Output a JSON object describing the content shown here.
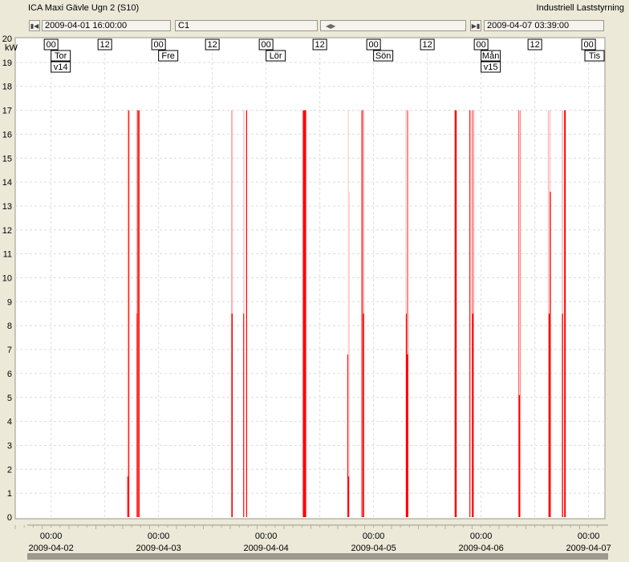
{
  "window": {
    "title": "ICA Maxi Gävle Ugn 2 (S10)",
    "right_title": "Industriell Laststyrning"
  },
  "navigation": {
    "start_time": "2009-04-01 16:00:00",
    "channel": "C1",
    "end_time": "2009-04-07 03:39:00",
    "first_icon": "skip-first-icon",
    "scroll_icon": "left-right-arrows-icon",
    "last_icon": "skip-last-icon"
  },
  "chart_data": {
    "type": "line",
    "ylabel": "kW",
    "ylim": [
      0,
      20
    ],
    "yticks": [
      0,
      1,
      2,
      3,
      4,
      5,
      6,
      7,
      8,
      9,
      10,
      11,
      12,
      13,
      14,
      15,
      16,
      17,
      18,
      19,
      20
    ],
    "x_start_hours_label": "2009-04-01 16:00",
    "xlim_hours": [
      0,
      131.65
    ],
    "x_ticks": [
      {
        "h": 8,
        "time": "00:00",
        "date": "2009-04-02"
      },
      {
        "h": 32,
        "time": "00:00",
        "date": "2009-04-03"
      },
      {
        "h": 56,
        "time": "00:00",
        "date": "2009-04-04"
      },
      {
        "h": 80,
        "time": "00:00",
        "date": "2009-04-05"
      },
      {
        "h": 104,
        "time": "00:00",
        "date": "2009-04-06"
      },
      {
        "h": 128,
        "time": "00:00",
        "date": "2009-04-07"
      }
    ],
    "top_markers": [
      {
        "h": 8,
        "lines": [
          "00",
          "Tor",
          "v14"
        ]
      },
      {
        "h": 20,
        "lines": [
          "12"
        ]
      },
      {
        "h": 32,
        "lines": [
          "00",
          "Fre"
        ]
      },
      {
        "h": 44,
        "lines": [
          "12"
        ]
      },
      {
        "h": 56,
        "lines": [
          "00",
          "Lör"
        ]
      },
      {
        "h": 68,
        "lines": [
          "12"
        ]
      },
      {
        "h": 80,
        "lines": [
          "00",
          "Sön"
        ]
      },
      {
        "h": 92,
        "lines": [
          "12"
        ]
      },
      {
        "h": 104,
        "lines": [
          "00",
          "Mån",
          "v15"
        ]
      },
      {
        "h": 116,
        "lines": [
          "12"
        ]
      },
      {
        "h": 128,
        "lines": [
          "00",
          "Tis"
        ]
      }
    ],
    "grid": true,
    "color": "#ff0000",
    "spikes": [
      {
        "h0": 25.0,
        "h1": 25.15,
        "v": 17,
        "partial": 1.7
      },
      {
        "h0": 25.25,
        "h1": 25.35,
        "v": 17
      },
      {
        "h0": 27.1,
        "h1": 27.35,
        "v": 8.5,
        "top": 17
      },
      {
        "h0": 27.45,
        "h1": 27.75,
        "v": 17
      },
      {
        "h0": 48.25,
        "h1": 48.55,
        "v": 17,
        "partial": 8.5
      },
      {
        "h0": 50.9,
        "h1": 51.1,
        "v": 17,
        "partial": 8.5
      },
      {
        "h0": 51.55,
        "h1": 51.75,
        "v": 17
      },
      {
        "h0": 64.2,
        "h1": 64.95,
        "v": 17
      },
      {
        "h0": 74.15,
        "h1": 74.35,
        "v": 17,
        "partial": 6.8
      },
      {
        "h0": 74.35,
        "h1": 74.55,
        "v": 13.6,
        "partial": 1.7
      },
      {
        "h0": 77.3,
        "h1": 77.5,
        "v": 17
      },
      {
        "h0": 77.6,
        "h1": 77.9,
        "v": 17,
        "partial": 8.5
      },
      {
        "h0": 87.2,
        "h1": 87.4,
        "v": 17,
        "partial": 8.5
      },
      {
        "h0": 87.4,
        "h1": 87.75,
        "v": 17,
        "partial": 6.8
      },
      {
        "h0": 98.1,
        "h1": 98.55,
        "v": 17
      },
      {
        "h0": 101.4,
        "h1": 101.6,
        "v": 17
      },
      {
        "h0": 101.95,
        "h1": 102.35,
        "v": 17,
        "partial": 8.5
      },
      {
        "h0": 112.35,
        "h1": 112.75,
        "v": 17,
        "partial": 5.1
      },
      {
        "h0": 119.05,
        "h1": 119.35,
        "v": 17,
        "partial": 8.5
      },
      {
        "h0": 119.35,
        "h1": 119.55,
        "v": 13.6
      },
      {
        "h0": 122.05,
        "h1": 122.3,
        "v": 17,
        "partial": 8.5
      },
      {
        "h0": 122.55,
        "h1": 122.9,
        "v": 17
      }
    ]
  }
}
